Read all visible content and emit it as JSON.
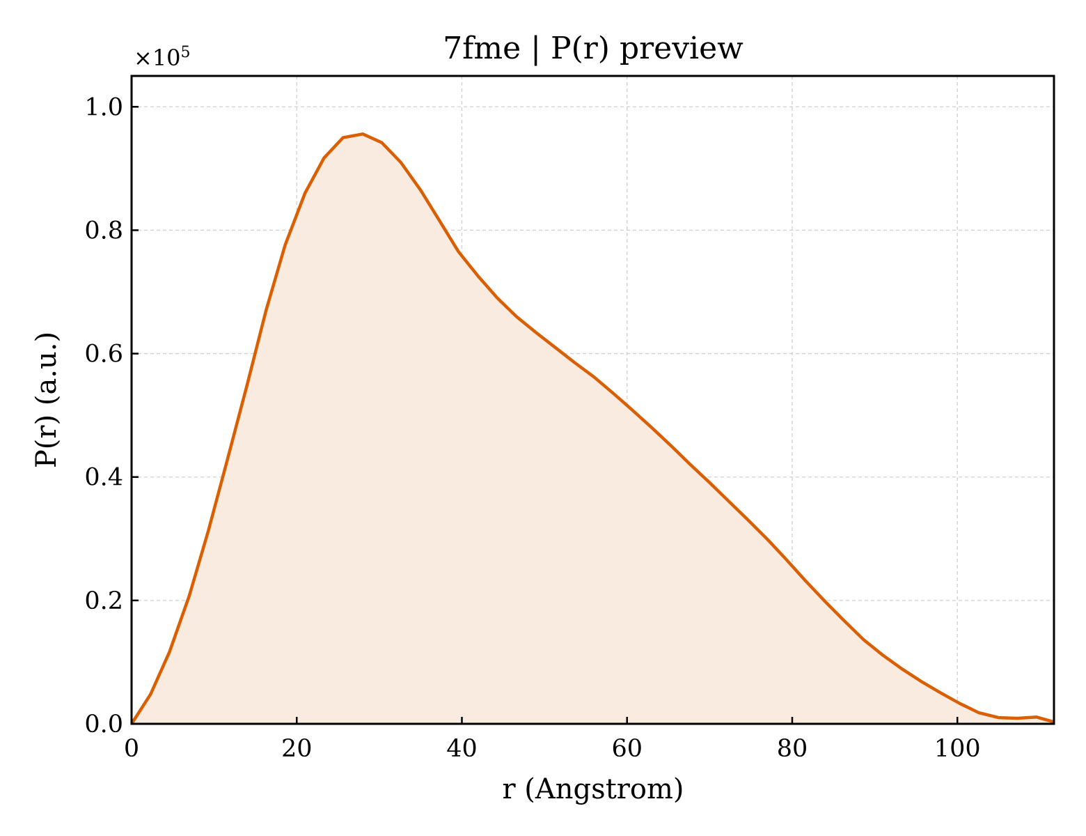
{
  "chart_data": {
    "type": "area",
    "title": "7fme | P(r) preview",
    "xlabel": "r (Angstrom)",
    "ylabel": "P(r) (a.u.)",
    "y_offset_label": "×10",
    "y_offset_exponent": "5",
    "xlim": [
      0,
      111.7
    ],
    "ylim": [
      0,
      1.05
    ],
    "y_scale": 100000,
    "x_ticks": [
      0,
      20,
      40,
      60,
      80,
      100
    ],
    "x_tick_labels": [
      "0",
      "20",
      "40",
      "60",
      "80",
      "100"
    ],
    "y_ticks": [
      0.0,
      0.2,
      0.4,
      0.6,
      0.8,
      1.0
    ],
    "y_tick_labels": [
      "0.0",
      "0.2",
      "0.4",
      "0.6",
      "0.8",
      "1.0"
    ],
    "grid": true,
    "line_color": "#d95f02",
    "fill_color": "#f9ebe0",
    "series": [
      {
        "x": [
          0,
          2.3,
          4.6,
          7.0,
          9.3,
          11.6,
          14.0,
          16.3,
          18.6,
          21.0,
          23.3,
          25.6,
          28.0,
          30.3,
          32.6,
          35.0,
          37.3,
          39.6,
          42.0,
          44.3,
          46.6,
          49.0,
          51.3,
          53.6,
          56.0,
          58.3,
          60.6,
          63.0,
          65.3,
          67.6,
          70.0,
          72.3,
          74.6,
          77.0,
          79.3,
          81.6,
          84.0,
          86.3,
          88.6,
          91.0,
          93.3,
          95.6,
          98.0,
          100.3,
          102.6,
          105.0,
          107.3,
          109.6,
          111.7
        ],
        "values": [
          0.0,
          0.048,
          0.117,
          0.208,
          0.313,
          0.428,
          0.55,
          0.671,
          0.776,
          0.86,
          0.917,
          0.95,
          0.956,
          0.942,
          0.91,
          0.865,
          0.815,
          0.765,
          0.725,
          0.69,
          0.66,
          0.634,
          0.61,
          0.586,
          0.562,
          0.536,
          0.509,
          0.48,
          0.451,
          0.421,
          0.391,
          0.361,
          0.331,
          0.299,
          0.266,
          0.232,
          0.198,
          0.167,
          0.137,
          0.111,
          0.089,
          0.069,
          0.05,
          0.033,
          0.018,
          0.01,
          0.009,
          0.011,
          0.003
        ]
      }
    ]
  }
}
